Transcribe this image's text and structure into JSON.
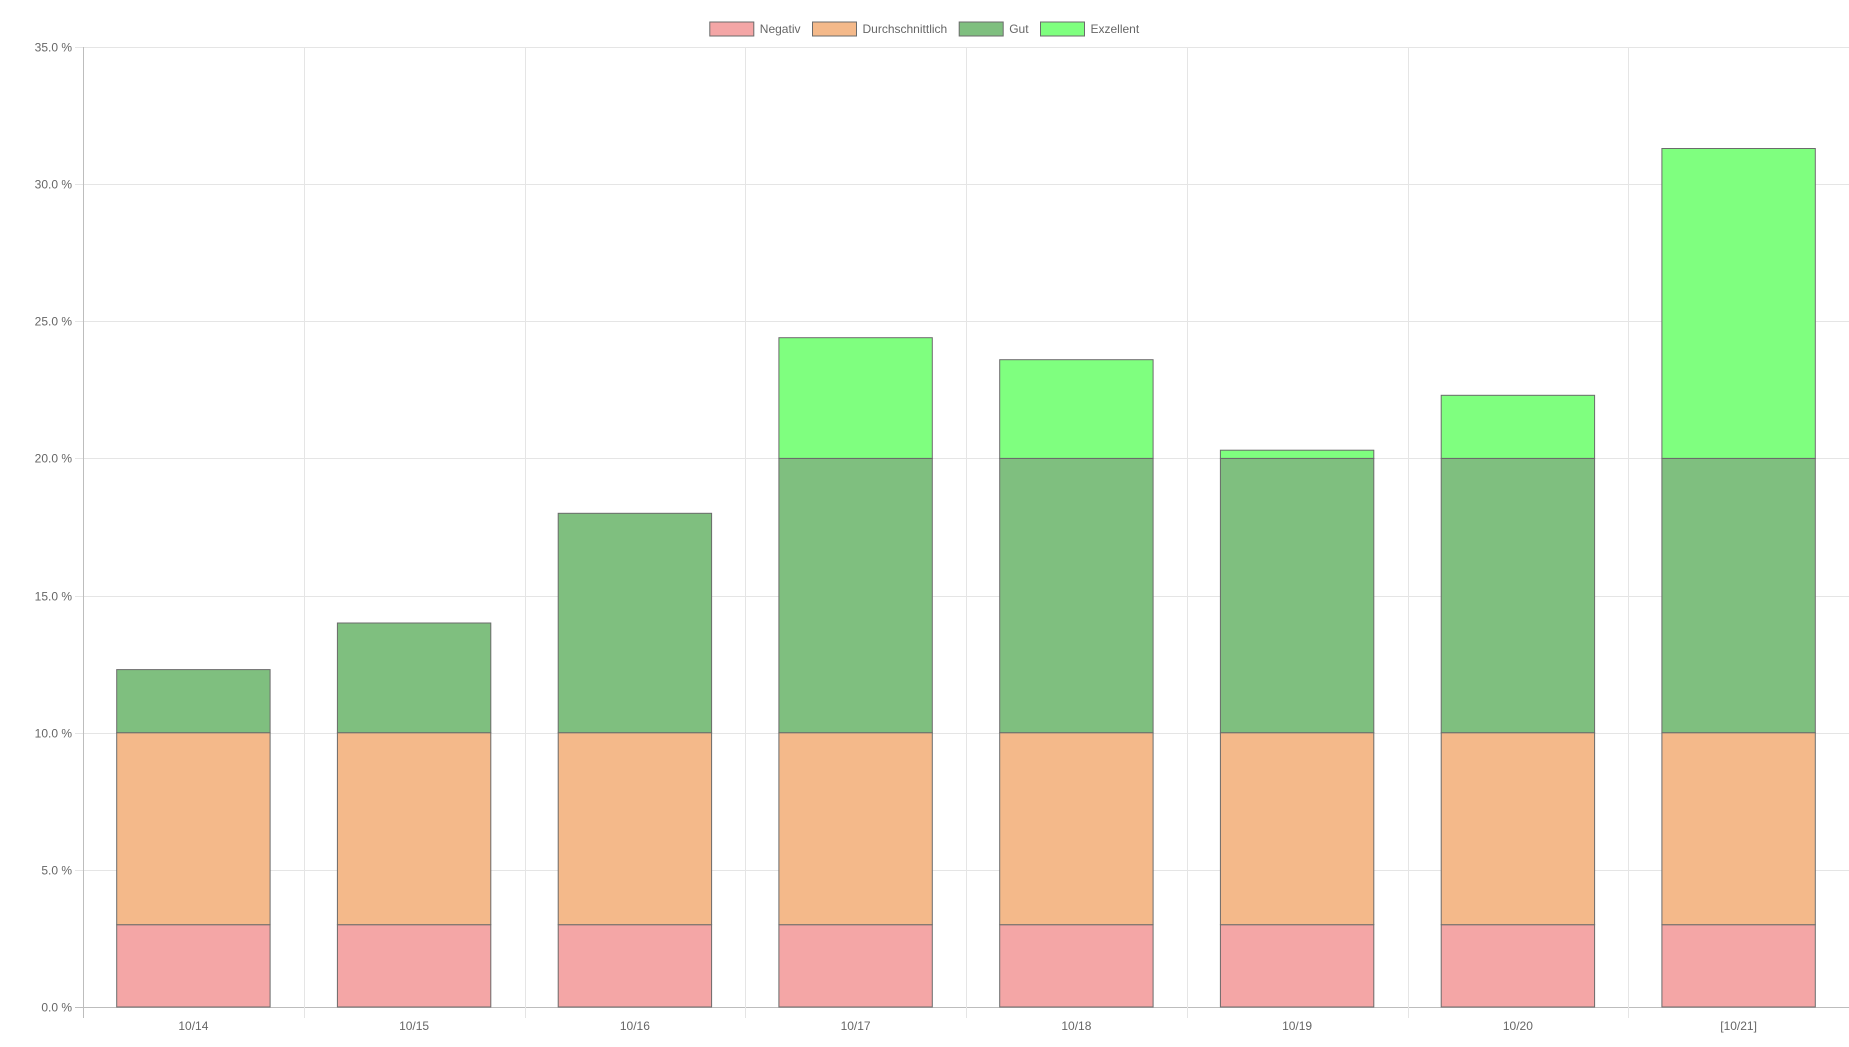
{
  "chart_data": {
    "type": "bar",
    "stacked": true,
    "title": "",
    "xlabel": "",
    "ylabel": "",
    "categories": [
      "10/14",
      "10/15",
      "10/16",
      "10/17",
      "10/18",
      "10/19",
      "10/20",
      "[10/21]"
    ],
    "ylim": [
      0,
      35
    ],
    "y_ticks": [
      "0.0 %",
      "5.0 %",
      "10.0 %",
      "15.0 %",
      "20.0 %",
      "25.0 %",
      "30.0 %",
      "35.0 %"
    ],
    "y_tick_values": [
      0,
      5,
      10,
      15,
      20,
      25,
      30,
      35
    ],
    "grid": true,
    "legend_position": "top-center",
    "series": [
      {
        "name": "Negativ",
        "color": "#f4a6a6",
        "values": [
          3,
          3,
          3,
          3,
          3,
          3,
          3,
          3
        ]
      },
      {
        "name": "Durchschnittlich",
        "color": "#f4b98a",
        "values": [
          7,
          7,
          7,
          7,
          7,
          7,
          7,
          7
        ]
      },
      {
        "name": "Gut",
        "color": "#7fbf7f",
        "values": [
          2.3,
          4.0,
          8.0,
          10,
          10,
          10,
          10,
          10
        ]
      },
      {
        "name": "Exzellent",
        "color": "#7fff7f",
        "values": [
          0,
          0,
          0,
          4.4,
          3.6,
          0.3,
          2.3,
          11.3
        ]
      }
    ],
    "colors": {
      "grid": "#e5e5e5",
      "axis": "#bdbdbd",
      "bar_border": "#6b6b6b",
      "text": "#666666"
    }
  }
}
